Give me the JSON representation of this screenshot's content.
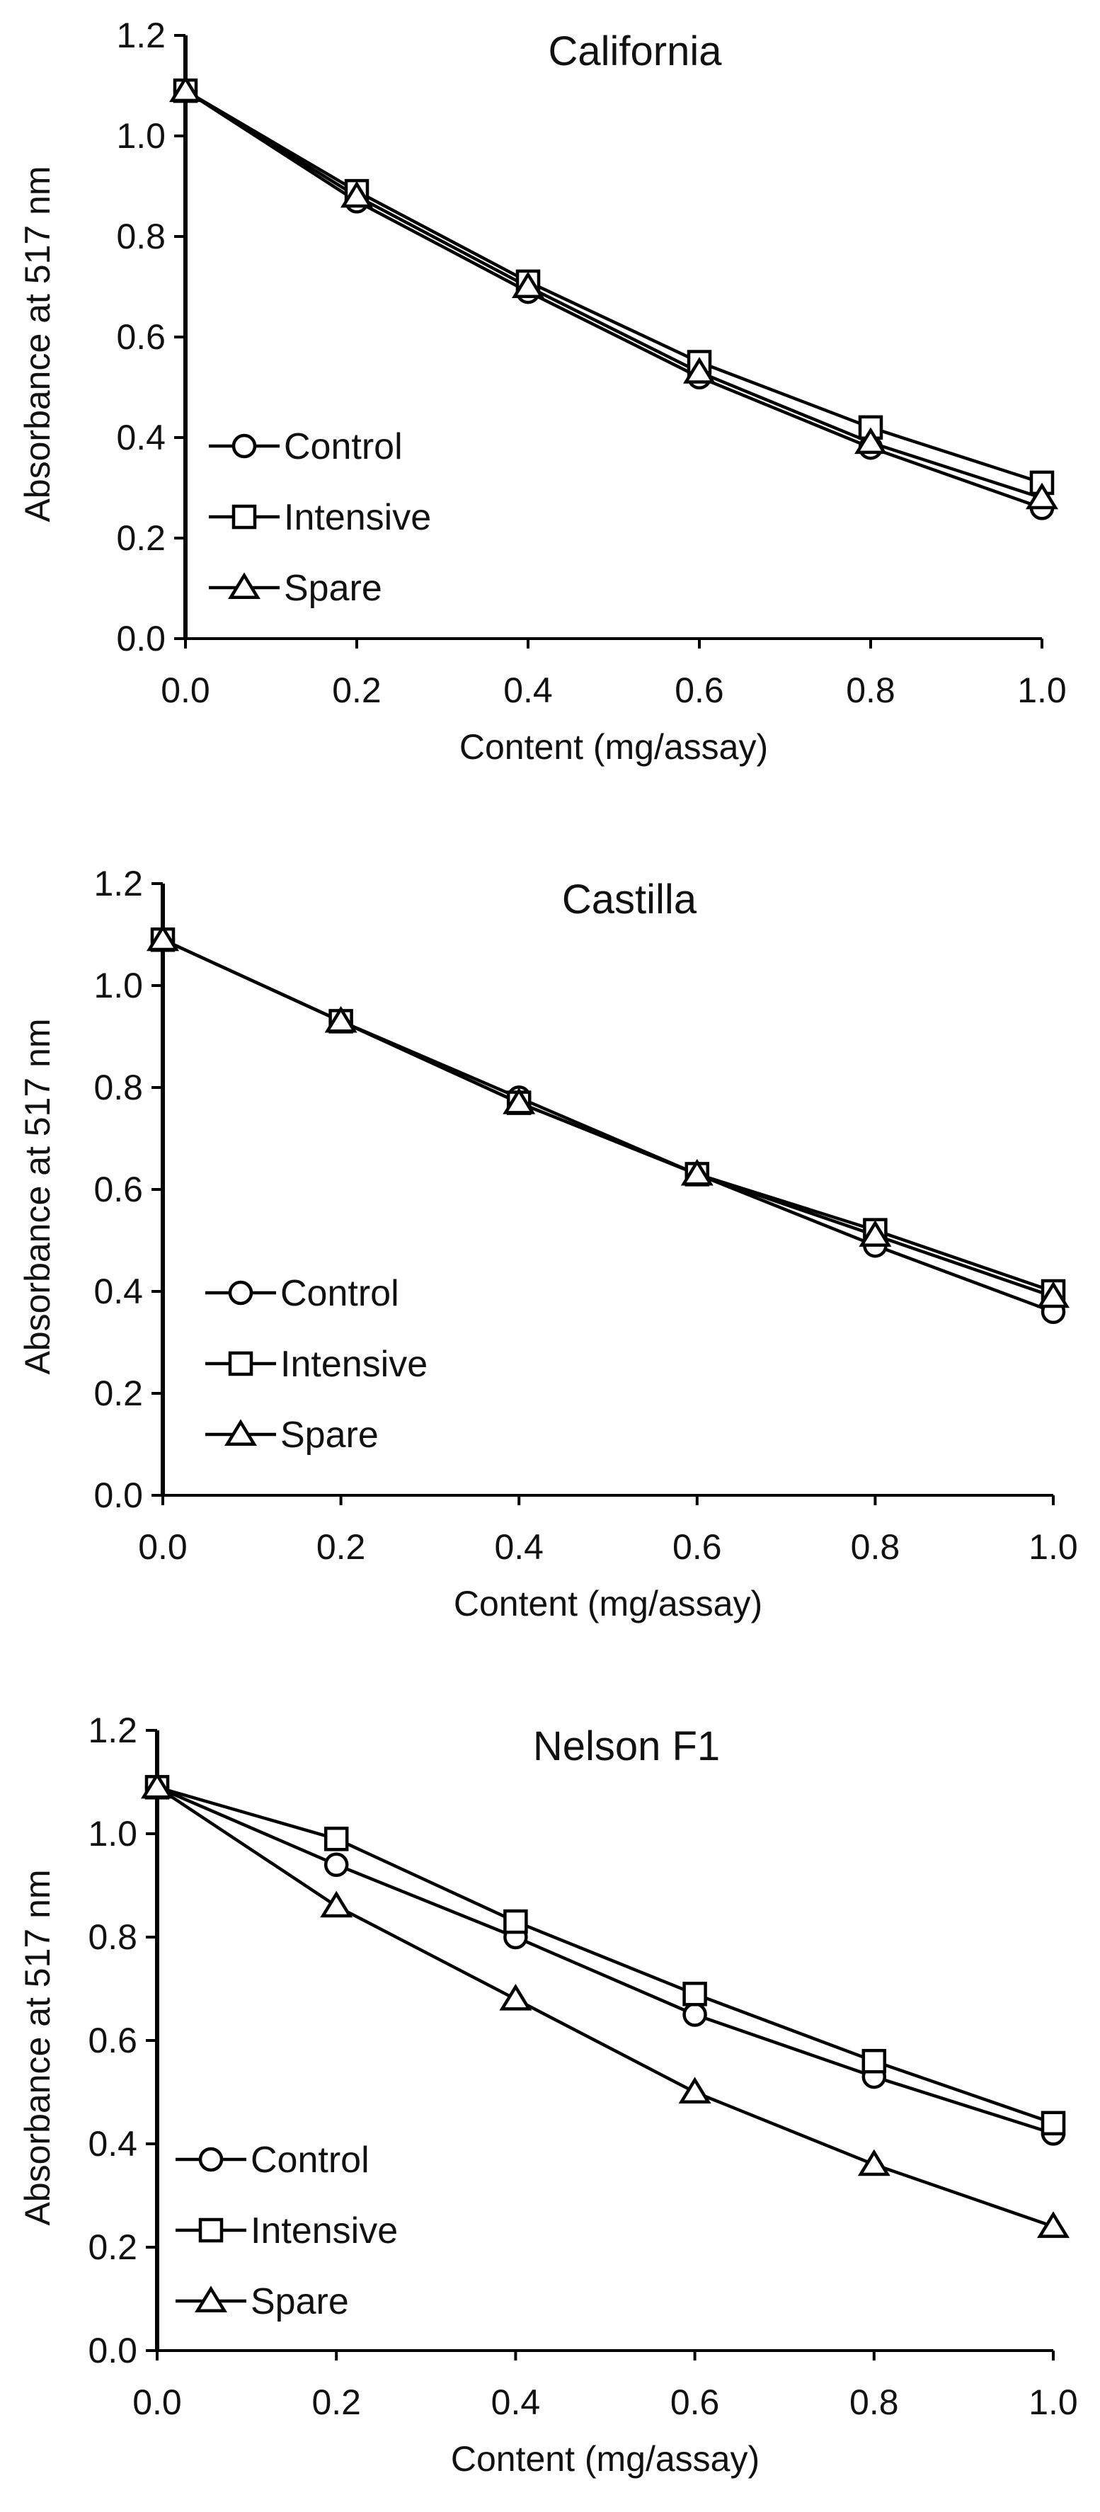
{
  "chart_data": [
    {
      "type": "line",
      "title": "California",
      "xlabel": "Content (mg/assay)",
      "ylabel": "Absorbance at 517 nm",
      "x": [
        0.0,
        0.2,
        0.4,
        0.6,
        0.8,
        1.0
      ],
      "xlim": [
        0.0,
        1.0
      ],
      "ylim": [
        0.0,
        1.2
      ],
      "xticks": [
        "0.0",
        "0.2",
        "0.4",
        "0.6",
        "0.8",
        "1.0"
      ],
      "yticks": [
        "0.0",
        "0.2",
        "0.4",
        "0.6",
        "0.8",
        "1.0",
        "1.2"
      ],
      "legend_position": "lower-left",
      "series": [
        {
          "name": "Control",
          "marker": "circle",
          "values": [
            1.09,
            0.87,
            0.69,
            0.52,
            0.38,
            0.26
          ]
        },
        {
          "name": "Intensive",
          "marker": "square",
          "values": [
            1.09,
            0.89,
            0.71,
            0.55,
            0.42,
            0.31
          ]
        },
        {
          "name": "Spare",
          "marker": "triangle",
          "values": [
            1.09,
            0.88,
            0.7,
            0.53,
            0.39,
            0.28
          ]
        }
      ]
    },
    {
      "type": "line",
      "title": "Castilla",
      "xlabel": "Content (mg/assay)",
      "ylabel": "Absorbance at 517 nm",
      "x": [
        0.0,
        0.2,
        0.4,
        0.6,
        0.8,
        1.0
      ],
      "xlim": [
        0.0,
        1.0
      ],
      "ylim": [
        0.0,
        1.2
      ],
      "xticks": [
        "0.0",
        "0.2",
        "0.4",
        "0.6",
        "0.8",
        "1.0"
      ],
      "yticks": [
        "0.0",
        "0.2",
        "0.4",
        "0.6",
        "0.8",
        "1.0",
        "1.2"
      ],
      "legend_position": "lower-left",
      "series": [
        {
          "name": "Control",
          "marker": "circle",
          "values": [
            1.09,
            0.93,
            0.78,
            0.63,
            0.49,
            0.36
          ]
        },
        {
          "name": "Intensive",
          "marker": "square",
          "values": [
            1.09,
            0.93,
            0.77,
            0.63,
            0.52,
            0.4
          ]
        },
        {
          "name": "Spare",
          "marker": "triangle",
          "values": [
            1.09,
            0.93,
            0.77,
            0.63,
            0.51,
            0.39
          ]
        }
      ]
    },
    {
      "type": "line",
      "title": "Nelson F1",
      "xlabel": "Content (mg/assay)",
      "ylabel": "Absorbance at 517 nm",
      "x": [
        0.0,
        0.2,
        0.4,
        0.6,
        0.8,
        1.0
      ],
      "xlim": [
        0.0,
        1.0
      ],
      "ylim": [
        0.0,
        1.2
      ],
      "xticks": [
        "0.0",
        "0.2",
        "0.4",
        "0.6",
        "0.8",
        "1.0"
      ],
      "yticks": [
        "0.0",
        "0.2",
        "0.4",
        "0.6",
        "0.8",
        "1.0",
        "1.2"
      ],
      "legend_position": "lower-left",
      "series": [
        {
          "name": "Control",
          "marker": "circle",
          "values": [
            1.09,
            0.94,
            0.8,
            0.65,
            0.53,
            0.42
          ]
        },
        {
          "name": "Intensive",
          "marker": "square",
          "values": [
            1.09,
            0.99,
            0.83,
            0.69,
            0.56,
            0.44
          ]
        },
        {
          "name": "Spare",
          "marker": "triangle",
          "values": [
            1.09,
            0.86,
            0.68,
            0.5,
            0.36,
            0.24
          ]
        }
      ]
    }
  ]
}
